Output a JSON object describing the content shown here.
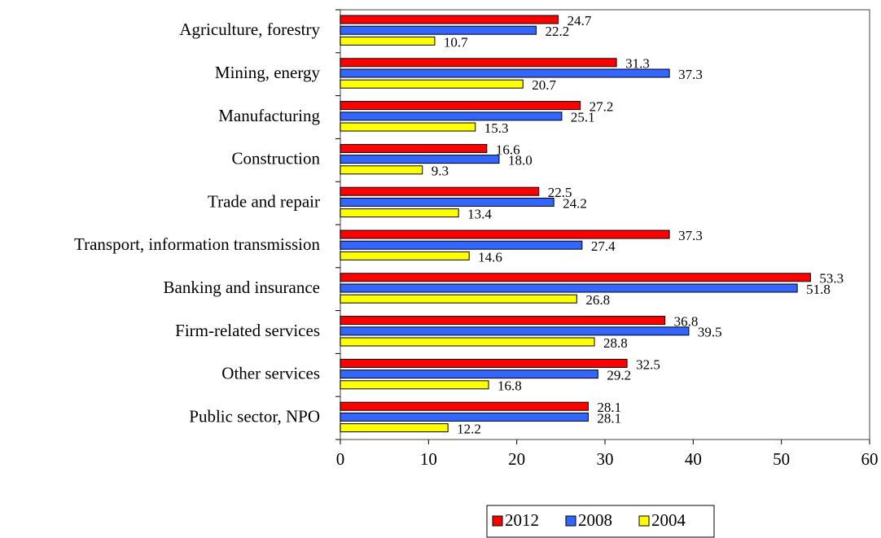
{
  "chart_data": {
    "type": "hbar",
    "categories": [
      "Agriculture, forestry",
      "Mining, energy",
      "Manufacturing",
      "Construction",
      "Trade and repair",
      "Transport, information transmission",
      "Banking and insurance",
      "Firm-related services",
      "Other services",
      "Public sector, NPO"
    ],
    "series": [
      {
        "name": "2012",
        "color": "#ff0000",
        "values": [
          24.7,
          31.3,
          27.2,
          16.6,
          22.5,
          37.3,
          53.3,
          36.8,
          32.5,
          28.1
        ],
        "value_labels": [
          "24.7",
          "31.3",
          "27.2",
          "16.6",
          "22.5",
          "37.3",
          "53.3",
          "36.8",
          "32.5",
          "28.1"
        ]
      },
      {
        "name": "2008",
        "color": "#3366ff",
        "values": [
          22.2,
          37.3,
          25.1,
          18.0,
          24.2,
          27.4,
          51.8,
          39.5,
          29.2,
          28.1
        ],
        "value_labels": [
          "22.2",
          "37.3",
          "25.1",
          "18.0",
          "24.2",
          "27.4",
          "51.8",
          "39.5",
          "29.2",
          "28.1"
        ]
      },
      {
        "name": "2004",
        "color": "#ffff00",
        "values": [
          10.7,
          20.7,
          15.3,
          9.3,
          13.4,
          14.6,
          26.8,
          28.8,
          16.8,
          12.2
        ],
        "value_labels": [
          "10.7",
          "20.7",
          "15.3",
          "9.3",
          "13.4",
          "14.6",
          "26.8",
          "28.8",
          "16.8",
          "12.2"
        ]
      }
    ],
    "xlim": [
      0,
      60
    ],
    "xticks": [
      0,
      10,
      20,
      30,
      40,
      50,
      60
    ],
    "legend": "bottom"
  }
}
